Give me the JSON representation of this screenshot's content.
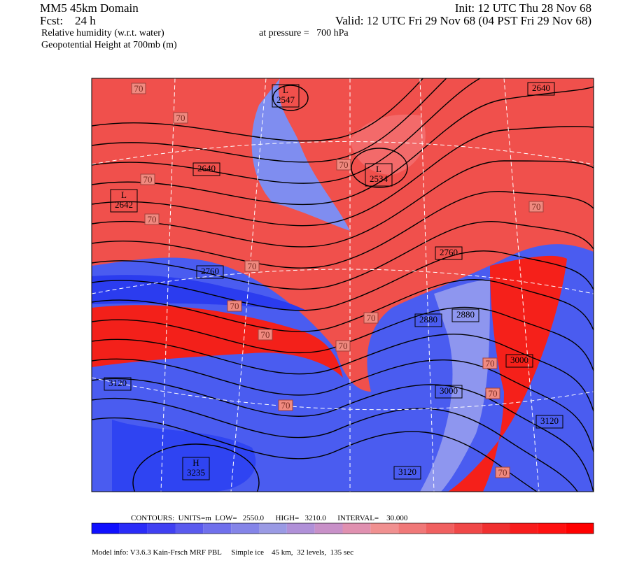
{
  "header": {
    "domain": "MM5 45km Domain",
    "forecast": "Fcst:    24 h",
    "field1": "Relative humidity (w.r.t. water)",
    "field2": "Geopotential Height at 700mb (m)",
    "init": "Init: 12 UTC Thu 28 Nov 68",
    "valid": "Valid: 12 UTC Fri 29 Nov 68 (04 PST Fri 29 Nov 68)",
    "pressure": "at pressure =   700 hPa"
  },
  "map": {
    "labels": [
      [
        "L",
        "2547"
      ],
      [
        "L",
        "2534"
      ],
      [
        "L",
        "2642"
      ],
      [
        "2640"
      ],
      [
        "2640"
      ],
      [
        "2760"
      ],
      [
        "2760"
      ],
      [
        "2880"
      ],
      [
        "2880"
      ],
      [
        "3000"
      ],
      [
        "3000"
      ],
      [
        "3120"
      ],
      [
        "3120"
      ],
      [
        "3120"
      ],
      [
        "H",
        "3235"
      ]
    ],
    "rh_labels": [
      "70",
      "70",
      "70",
      "70",
      "70",
      "70",
      "70",
      "70",
      "70",
      "70",
      "70",
      "70",
      "70",
      "70",
      "70"
    ]
  },
  "footer": {
    "contours": "CONTOURS:  UNITS=m  LOW=   2550.0      HIGH=   3210.0      INTERVAL=    30.000",
    "model_info": "Model info: V3.6.3 Kain-Frsch MRF PBL     Simple ice    45 km,  32 levels,  135 sec"
  }
}
